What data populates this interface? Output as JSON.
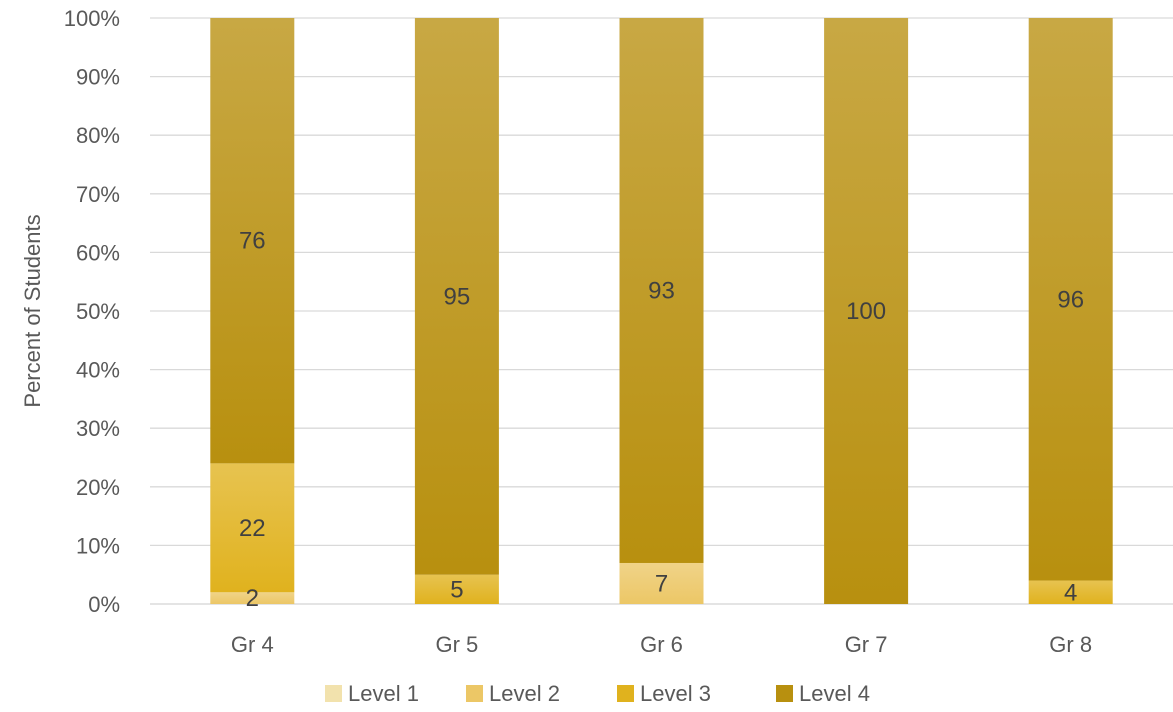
{
  "chart_data": {
    "type": "bar",
    "stacked": true,
    "percent_stacked": true,
    "categories": [
      "Gr 4",
      "Gr 5",
      "Gr 6",
      "Gr 7",
      "Gr 8"
    ],
    "series": [
      {
        "name": "Level 1",
        "values": [
          0,
          0,
          0,
          0,
          0
        ],
        "labels": [
          "",
          "",
          "",
          "",
          ""
        ],
        "color": "#f2e2ad"
      },
      {
        "name": "Level 2",
        "values": [
          2,
          0,
          7,
          0,
          0
        ],
        "labels": [
          "2",
          "",
          "7",
          "",
          ""
        ],
        "color": "#ecc766"
      },
      {
        "name": "Level 3",
        "values": [
          22,
          5,
          0,
          0,
          4
        ],
        "labels": [
          "22",
          "5",
          "",
          "",
          "4"
        ],
        "color": "#e0b21e"
      },
      {
        "name": "Level 4",
        "values": [
          76,
          95,
          93,
          100,
          96
        ],
        "labels": [
          "76",
          "95",
          "93",
          "100",
          "96"
        ],
        "color": "#b8900f"
      }
    ],
    "title": "",
    "xlabel": "",
    "ylabel": "Percent of Students",
    "ylim": [
      0,
      100
    ],
    "yticks": [
      "0%",
      "10%",
      "20%",
      "30%",
      "40%",
      "50%",
      "60%",
      "70%",
      "80%",
      "90%",
      "100%"
    ],
    "grid": true,
    "legend_position": "bottom"
  }
}
